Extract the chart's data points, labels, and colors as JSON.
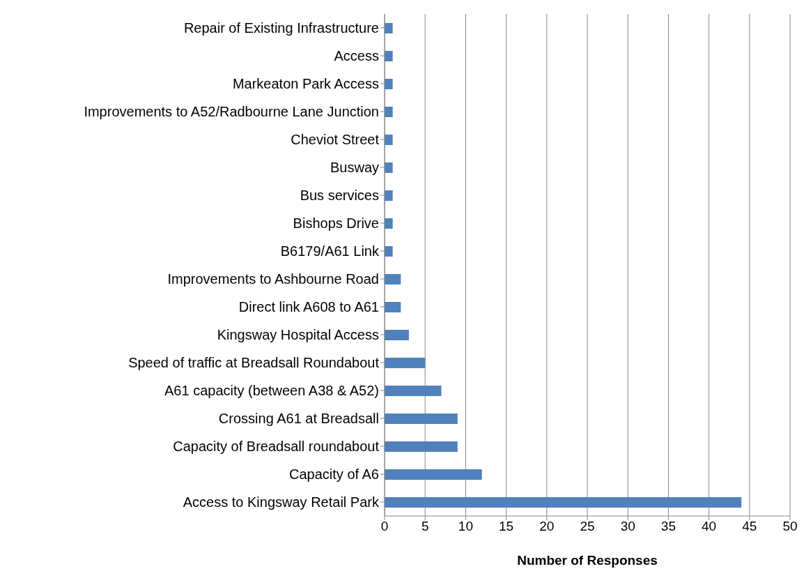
{
  "chart_data": {
    "type": "bar",
    "orientation": "horizontal",
    "xlabel": "Number of Responses",
    "categories": [
      "Repair of Existing Infrastructure",
      "Access",
      "Markeaton Park Access",
      "Improvements to A52/Radbourne Lane Junction",
      "Cheviot Street",
      "Busway",
      "Bus services",
      "Bishops Drive",
      "B6179/A61 Link",
      "Improvements to Ashbourne Road",
      "Direct link A608 to A61",
      "Kingsway Hospital Access",
      "Speed of traffic at Breadsall Roundabout",
      "A61 capacity (between A38 & A52)",
      "Crossing A61 at Breadsall",
      "Capacity of Breadsall roundabout",
      "Capacity of A6",
      "Access to Kingsway Retail Park"
    ],
    "values": [
      1,
      1,
      1,
      1,
      1,
      1,
      1,
      1,
      1,
      2,
      2,
      3,
      5,
      7,
      9,
      9,
      12,
      44
    ],
    "color": "#4f81bd",
    "xlim": [
      0,
      50
    ],
    "xticks": [
      0,
      5,
      10,
      15,
      20,
      25,
      30,
      35,
      40,
      45,
      50
    ],
    "grid": "x",
    "legend": false
  }
}
